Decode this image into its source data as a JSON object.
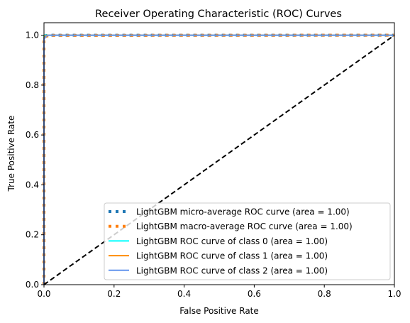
{
  "chart_data": {
    "type": "line",
    "title": "Receiver Operating Characteristic (ROC) Curves",
    "xlabel": "False Positive Rate",
    "ylabel": "True Positive Rate",
    "xlim": [
      0.0,
      1.0
    ],
    "ylim": [
      0.0,
      1.05
    ],
    "xticks": [
      "0.0",
      "0.2",
      "0.4",
      "0.6",
      "0.8",
      "1.0"
    ],
    "yticks": [
      "0.0",
      "0.2",
      "0.4",
      "0.6",
      "0.8",
      "1.0"
    ],
    "grid": false,
    "legend_position": "lower-right",
    "series": [
      {
        "name": "LightGBM micro-average ROC curve (area = 1.00)",
        "color": "#1f77b4",
        "style": "dotted",
        "x": [
          0,
          0,
          0.004,
          0.012,
          1.0
        ],
        "y": [
          0,
          0.99,
          0.998,
          1.0,
          1.0
        ]
      },
      {
        "name": "LightGBM macro-average ROC curve (area = 1.00)",
        "color": "#ff7f0e",
        "style": "dotted",
        "x": [
          0,
          0,
          0.005,
          0.015,
          1.0
        ],
        "y": [
          0,
          0.985,
          0.995,
          0.999,
          1.0
        ]
      },
      {
        "name": "LightGBM ROC curve of class 0 (area = 1.00)",
        "color": "#00ffff",
        "style": "solid",
        "x": [
          0,
          0,
          0.003,
          1.0
        ],
        "y": [
          0,
          0.995,
          1.0,
          1.0
        ]
      },
      {
        "name": "LightGBM ROC curve of class 1 (area = 1.00)",
        "color": "#ff8c00",
        "style": "solid",
        "x": [
          0,
          0,
          0.004,
          0.01,
          1.0
        ],
        "y": [
          0,
          0.99,
          0.997,
          1.0,
          1.0
        ]
      },
      {
        "name": "LightGBM ROC curve of class 2 (area = 1.00)",
        "color": "#6495ed",
        "style": "solid",
        "x": [
          0,
          0,
          0.006,
          0.012,
          1.0
        ],
        "y": [
          0,
          0.985,
          0.995,
          1.0,
          1.0
        ]
      }
    ],
    "reference_line": {
      "x": [
        0,
        1
      ],
      "y": [
        0,
        1
      ],
      "color": "#000000",
      "style": "dashed"
    }
  }
}
